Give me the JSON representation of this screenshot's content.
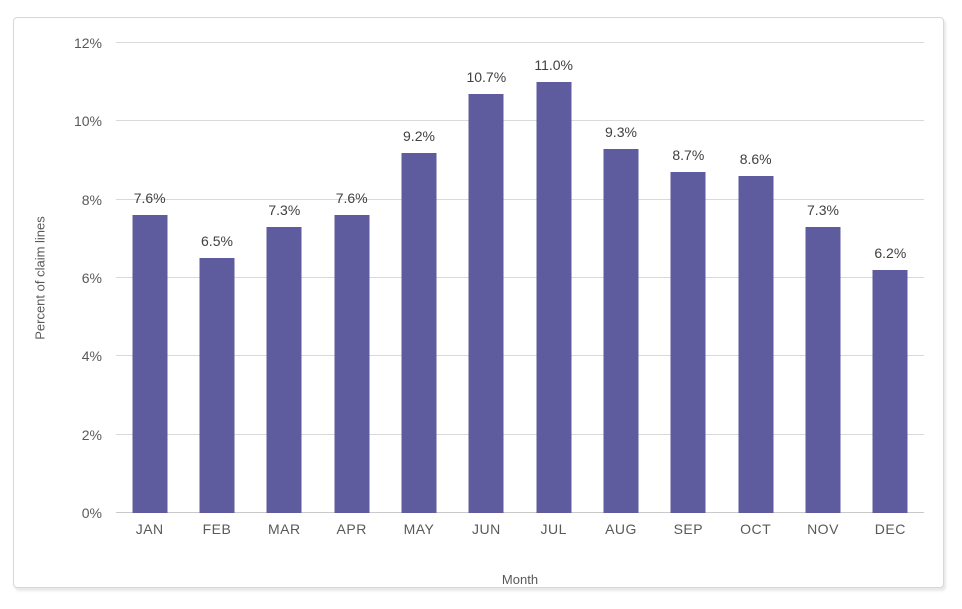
{
  "chart_data": {
    "type": "bar",
    "title": "",
    "xlabel": "Month",
    "ylabel": "Percent of claim lines",
    "categories": [
      "JAN",
      "FEB",
      "MAR",
      "APR",
      "MAY",
      "JUN",
      "JUL",
      "AUG",
      "SEP",
      "OCT",
      "NOV",
      "DEC"
    ],
    "values": [
      7.6,
      6.5,
      7.3,
      7.6,
      9.2,
      10.7,
      11.0,
      9.3,
      8.7,
      8.6,
      7.3,
      6.2
    ],
    "data_labels": [
      "7.6%",
      "6.5%",
      "7.3%",
      "7.6%",
      "9.2%",
      "10.7%",
      "11.0%",
      "9.3%",
      "8.7%",
      "8.6%",
      "7.3%",
      "6.2%"
    ],
    "ylim": [
      0,
      12
    ],
    "ytick_step": 2,
    "ytick_labels": [
      "0%",
      "2%",
      "4%",
      "6%",
      "8%",
      "10%",
      "12%"
    ],
    "grid": "horizontal",
    "legend": "none",
    "colors": {
      "bar": "#5E5B9E",
      "gridline": "#D9D9D9",
      "axis_line": "#C9C9C9",
      "tick_label": "#595959",
      "data_label": "#404040",
      "frame_border": "#D7D7D7",
      "background": "#FFFFFF"
    }
  }
}
